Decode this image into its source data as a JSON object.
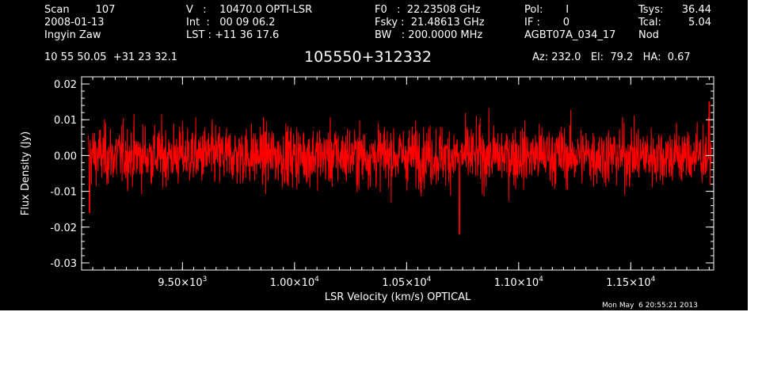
{
  "header": {
    "col1": [
      "Scan        107",
      "2008-01-13",
      "Ingyin Zaw"
    ],
    "col2": [
      "V   :    10470.0 OPTI-LSR",
      "Int  :   00 09 06.2",
      "LST : +11 36 17.6"
    ],
    "col3": [
      "F0   :  22.23508 GHz",
      "Fsky :  21.48613 GHz",
      "BW   : 200.0000 MHz"
    ],
    "col4": [
      "Pol:       I",
      "IF :       0",
      "AGBT07A_034_17"
    ],
    "col5_labels": [
      "Tsys:",
      "Tcal:",
      "Nod"
    ],
    "col5_values": [
      "36.44",
      "5.04",
      ""
    ],
    "coords": "10 55 50.05  +31 23 32.1",
    "source": "105550+312332",
    "pointing": "Az: 232.0   El:  79.2   HA:  0.67",
    "timestamp": "Mon May  6 20:55:21 2013"
  },
  "colors": {
    "background": "#000000",
    "trace": "#ff0000",
    "axes": "#ffffff",
    "page": "#ffffff"
  },
  "chart_data": {
    "type": "line",
    "xlabel": "LSR Velocity (km/s) OPTICAL",
    "ylabel": "Flux Density (Jy)",
    "xlim": [
      9050,
      11870
    ],
    "ylim": [
      -0.032,
      0.022
    ],
    "y_ticks": [
      0.02,
      0.01,
      0.0,
      -0.01,
      -0.02,
      -0.03
    ],
    "y_tick_labels": [
      "0.02",
      "0.01",
      "0.00",
      "-0.01",
      "-0.02",
      "-0.03"
    ],
    "x_ticks": [
      9500,
      10000,
      10500,
      11000,
      11500
    ],
    "x_tick_mantissa": [
      "9.50×10",
      "1.00×10",
      "1.05×10",
      "1.10×10",
      "1.15×10"
    ],
    "x_tick_exponents": [
      "3",
      "4",
      "4",
      "4",
      "4"
    ],
    "grid": false,
    "series": [
      {
        "style": "noise spectrum",
        "x_start": 9080,
        "x_end": 11860,
        "n_channels": 2048,
        "baseline": 0.0,
        "noise_rms": 0.0042,
        "features": [
          {
            "x": 9085,
            "y": -0.016
          },
          {
            "x": 10735,
            "y": -0.022
          },
          {
            "x": 11850,
            "y": 0.015
          }
        ]
      }
    ]
  }
}
